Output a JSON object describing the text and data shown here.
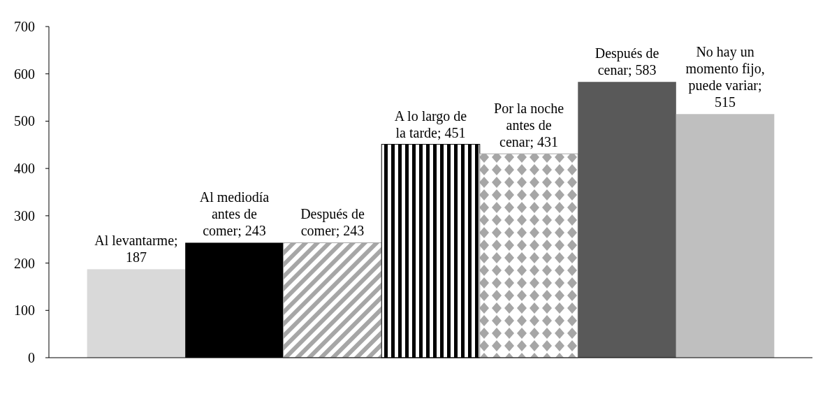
{
  "chart_data": {
    "type": "bar",
    "categories": [
      null
    ],
    "ylim": [
      0,
      700
    ],
    "yticks": [
      0,
      100,
      200,
      300,
      400,
      500,
      600,
      700
    ],
    "grid": false,
    "series": [
      {
        "color": "#d9d9d9",
        "values": [
          187
        ],
        "value_labels": [
          "Al levantarme; 187"
        ]
      },
      {
        "color": "#000000",
        "values": [
          243
        ],
        "value_labels": [
          "Al mediodía antes de comer; 243"
        ]
      },
      {
        "color": "#a6a6a6",
        "values": [
          243
        ],
        "value_labels": [
          "Después de comer; 243"
        ]
      },
      {
        "color": "#000000",
        "values": [
          451
        ],
        "value_labels": [
          "A lo largo de la tarde; 451"
        ]
      },
      {
        "color": "#a6a6a6",
        "values": [
          431
        ],
        "value_labels": [
          "Por la noche antes de cenar; 431"
        ]
      },
      {
        "color": "#595959",
        "values": [
          583
        ],
        "value_labels": [
          "Después de cenar; 583"
        ]
      },
      {
        "color": "#bfbfbf",
        "values": [
          515
        ],
        "value_labels": [
          "No hay un momento fijo, puede variar; 515"
        ]
      }
    ]
  }
}
